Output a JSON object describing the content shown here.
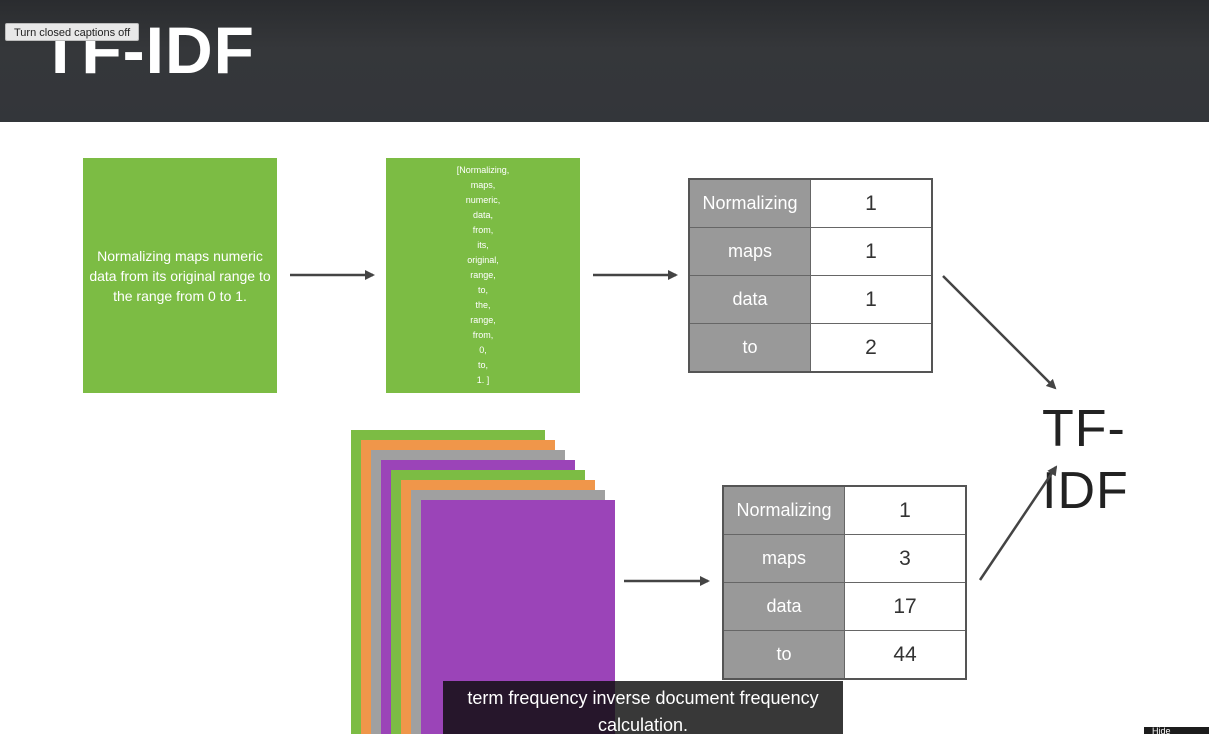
{
  "header": {
    "title": "TF-IDF",
    "caption_toggle_label": "Turn closed captions off"
  },
  "slide": {
    "sentence": "Normalizing maps numeric data from its original range to the range from 0 to 1.",
    "tokens": [
      "[Normalizing,",
      "maps,",
      "numeric,",
      "data,",
      "from,",
      "its,",
      "original,",
      "range,",
      "to,",
      "the,",
      "range,",
      "from,",
      "0,",
      "to,",
      "1. ]"
    ],
    "term_frequency_table": [
      {
        "term": "Normalizing",
        "count": "1"
      },
      {
        "term": "maps",
        "count": "1"
      },
      {
        "term": "data",
        "count": "1"
      },
      {
        "term": "to",
        "count": "2"
      }
    ],
    "document_frequency_table": [
      {
        "term": "Normalizing",
        "count": "1"
      },
      {
        "term": "maps",
        "count": "3"
      },
      {
        "term": "data",
        "count": "17"
      },
      {
        "term": "to",
        "count": "44"
      }
    ],
    "result_label": "TF-IDF",
    "document_stack_colors": [
      "#7cbc44",
      "#f0964a",
      "#a0a0a0",
      "#9b44b8",
      "#7cbc44",
      "#f0964a",
      "#a0a0a0",
      "#9b44b8"
    ]
  },
  "captions": {
    "text": "term frequency inverse document frequency calculation."
  },
  "corner_button": {
    "label": "Hide"
  },
  "colors": {
    "header_bg": "#33363a",
    "green": "#7cbc44",
    "orange": "#f0964a",
    "gray": "#a0a0a0",
    "purple": "#9b44b8",
    "term_cell": "#999999"
  }
}
